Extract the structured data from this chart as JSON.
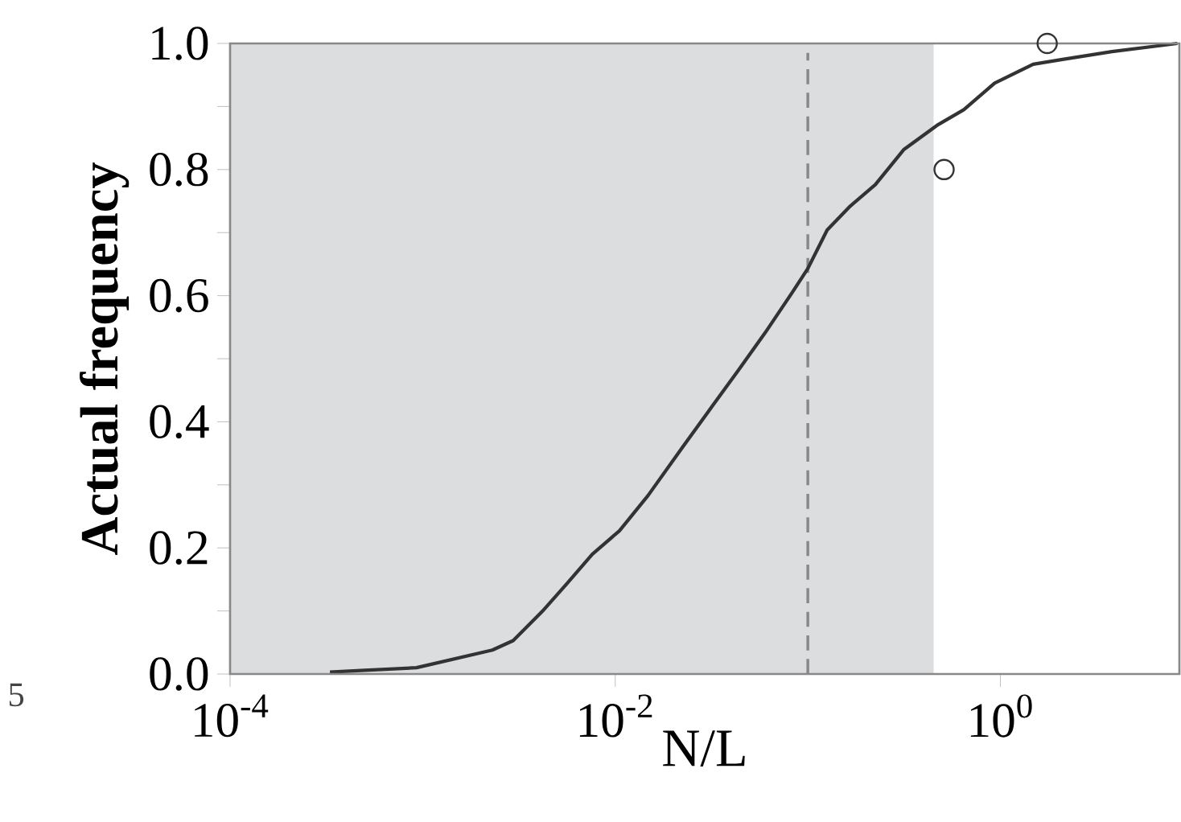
{
  "chart_data": {
    "type": "line",
    "xlabel": "N/L",
    "ylabel": "Actual frequency",
    "log": "x",
    "xlim": [
      0.0001,
      8.5
    ],
    "ylim": [
      0,
      1
    ],
    "xticks": [
      {
        "value": 0.0001,
        "label": "10$^{-4}$"
      },
      {
        "value": 0.01,
        "label": "10$^{-2}$"
      },
      {
        "value": 1,
        "label": "10$^{0}$"
      }
    ],
    "yticks": [
      {
        "value": 0,
        "label": "0.0"
      },
      {
        "value": 0.1,
        "label": null
      },
      {
        "value": 0.2,
        "label": "0.2"
      },
      {
        "value": 0.3,
        "label": null
      },
      {
        "value": 0.4,
        "label": "0.4"
      },
      {
        "value": 0.5,
        "label": null
      },
      {
        "value": 0.6,
        "label": "0.6"
      },
      {
        "value": 0.7,
        "label": null
      },
      {
        "value": 0.8,
        "label": "0.8"
      },
      {
        "value": 0.9,
        "label": null
      },
      {
        "value": 1,
        "label": "1.0"
      }
    ],
    "grid": false,
    "series": [
      {
        "type": "line",
        "color": "#333333",
        "line_style": "solid",
        "marker": "none",
        "x": [
          0.00033,
          0.0005,
          0.00093,
          0.0023,
          0.00295,
          0.0042,
          0.0056,
          0.0076,
          0.0105,
          0.0148,
          0.0224,
          0.0316,
          0.0437,
          0.06,
          0.083,
          0.1,
          0.126,
          0.166,
          0.224,
          0.316,
          0.468,
          0.646,
          0.933,
          1.48,
          2.04,
          3.8,
          8.3
        ],
        "values": [
          0.003,
          0.006,
          0.01,
          0.038,
          0.053,
          0.1,
          0.143,
          0.19,
          0.227,
          0.283,
          0.36,
          0.423,
          0.482,
          0.541,
          0.605,
          0.643,
          0.704,
          0.742,
          0.776,
          0.832,
          0.87,
          0.895,
          0.937,
          0.967,
          0.974,
          0.987,
          1.0
        ]
      },
      {
        "type": "scatter",
        "color": "#333333",
        "marker": "circle",
        "x": [
          0.51,
          1.75
        ],
        "values": [
          0.8,
          1.0
        ]
      }
    ],
    "ref_lines": [
      {
        "axis": "x",
        "value": 0.1,
        "color": "#888888",
        "line_style": "dashed"
      }
    ],
    "bands": [
      {
        "axis": "x",
        "from": 0.0001,
        "to": 0.45,
        "color": "#dcdddf"
      }
    ],
    "annotations": [
      "5"
    ]
  }
}
